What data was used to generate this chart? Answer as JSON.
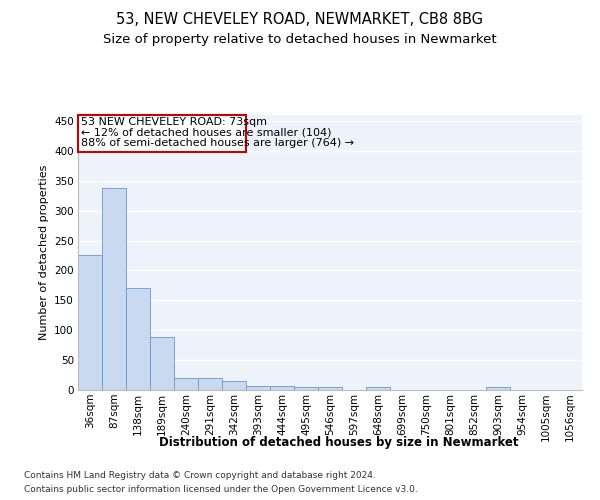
{
  "title1": "53, NEW CHEVELEY ROAD, NEWMARKET, CB8 8BG",
  "title2": "Size of property relative to detached houses in Newmarket",
  "xlabel": "Distribution of detached houses by size in Newmarket",
  "ylabel": "Number of detached properties",
  "categories": [
    "36sqm",
    "87sqm",
    "138sqm",
    "189sqm",
    "240sqm",
    "291sqm",
    "342sqm",
    "393sqm",
    "444sqm",
    "495sqm",
    "546sqm",
    "597sqm",
    "648sqm",
    "699sqm",
    "750sqm",
    "801sqm",
    "852sqm",
    "903sqm",
    "954sqm",
    "1005sqm",
    "1056sqm"
  ],
  "values": [
    225,
    338,
    170,
    88,
    20,
    20,
    15,
    7,
    7,
    5,
    5,
    0,
    5,
    0,
    0,
    0,
    0,
    5,
    0,
    0,
    0
  ],
  "bar_color": "#c9d9f0",
  "bar_edge_color": "#6699cc",
  "background_color": "#eef2fb",
  "grid_color": "#ffffff",
  "ylim": [
    0,
    460
  ],
  "yticks": [
    0,
    50,
    100,
    150,
    200,
    250,
    300,
    350,
    400,
    450
  ],
  "annotation_title": "53 NEW CHEVELEY ROAD: 73sqm",
  "annotation_line1": "← 12% of detached houses are smaller (104)",
  "annotation_line2": "88% of semi-detached houses are larger (764) →",
  "annotation_box_color": "#ffffff",
  "annotation_border_color": "#cc0000",
  "footer1": "Contains HM Land Registry data © Crown copyright and database right 2024.",
  "footer2": "Contains public sector information licensed under the Open Government Licence v3.0.",
  "title1_fontsize": 10.5,
  "title2_fontsize": 9.5,
  "xlabel_fontsize": 8.5,
  "ylabel_fontsize": 8,
  "tick_fontsize": 7.5,
  "annotation_fontsize": 8,
  "footer_fontsize": 6.5
}
